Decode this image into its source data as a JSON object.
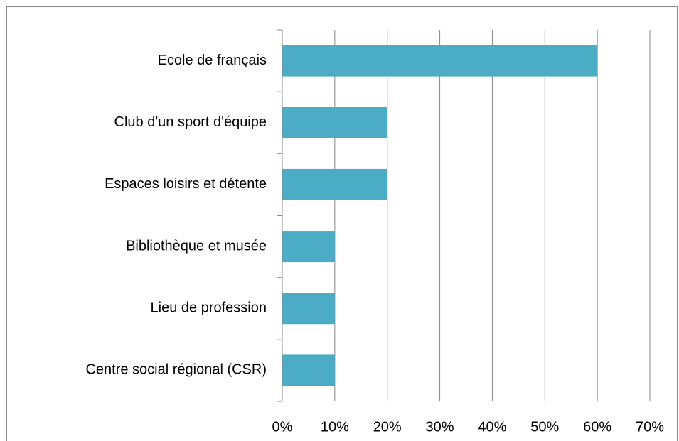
{
  "chart_data": {
    "type": "bar",
    "orientation": "horizontal",
    "categories": [
      "Ecole de français",
      "Club d'un sport d'équipe",
      "Espaces loisirs et détente",
      "Bibliothèque et musée",
      "Lieu de profession",
      "Centre social régional (CSR)"
    ],
    "values": [
      60,
      20,
      20,
      10,
      10,
      10
    ],
    "color": "#4bacc6",
    "xlim": [
      0,
      70
    ],
    "xticks": [
      {
        "value": 0,
        "label": "0%"
      },
      {
        "value": 10,
        "label": "10%"
      },
      {
        "value": 20,
        "label": "20%"
      },
      {
        "value": 30,
        "label": "30%"
      },
      {
        "value": 40,
        "label": "40%"
      },
      {
        "value": 50,
        "label": "50%"
      },
      {
        "value": 60,
        "label": "60%"
      },
      {
        "value": 70,
        "label": "70%"
      }
    ],
    "grid": true
  }
}
